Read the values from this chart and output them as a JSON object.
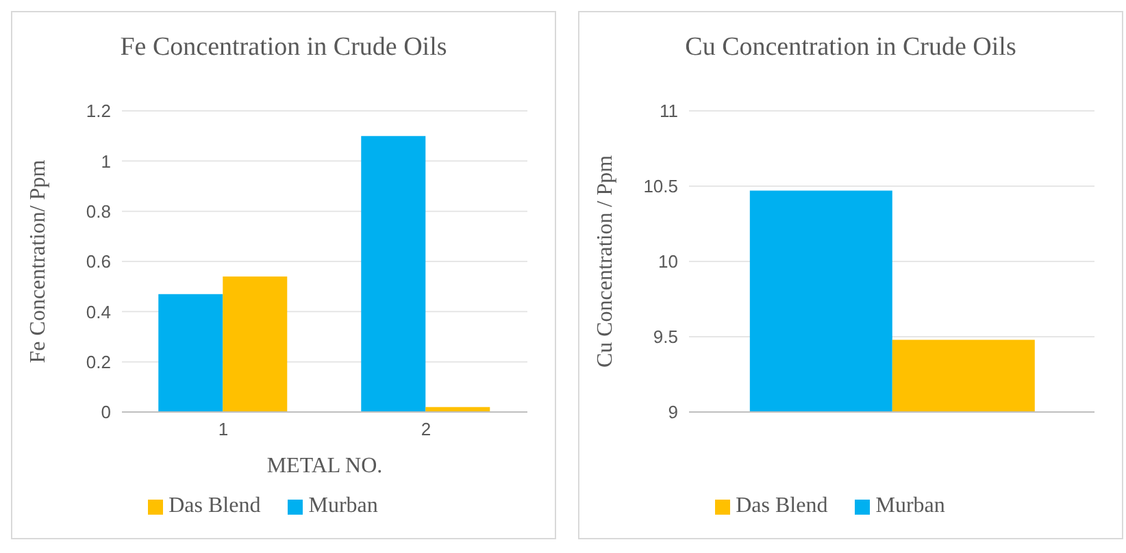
{
  "chart_data": [
    {
      "type": "bar",
      "title": "Fe Concentration in Crude Oils",
      "xlabel": "METAL NO.",
      "ylabel": "Fe Concentration/ Ppm",
      "categories": [
        "1",
        "2"
      ],
      "series": [
        {
          "name": "Murban",
          "color": "#00b0f0",
          "values": [
            0.47,
            1.1
          ]
        },
        {
          "name": "Das Blend",
          "color": "#ffc000",
          "values": [
            0.54,
            0.02
          ]
        }
      ],
      "ylim": [
        0,
        1.2
      ],
      "yticks": [
        0,
        0.2,
        0.4,
        0.6,
        0.8,
        1,
        1.2
      ],
      "grid": "y",
      "legend": "bottom"
    },
    {
      "type": "bar",
      "title": "Cu Concentration in Crude Oils",
      "ylabel": "Cu Concentration / Ppm",
      "categories": [
        null
      ],
      "series": [
        {
          "name": "Murban",
          "color": "#00b0f0",
          "values": [
            10.47
          ]
        },
        {
          "name": "Das Blend",
          "color": "#ffc000",
          "values": [
            9.48
          ]
        }
      ],
      "ylim": [
        9,
        11
      ],
      "yticks": [
        9,
        9.5,
        10,
        10.5,
        11
      ],
      "grid": "y",
      "legend": "bottom"
    }
  ]
}
